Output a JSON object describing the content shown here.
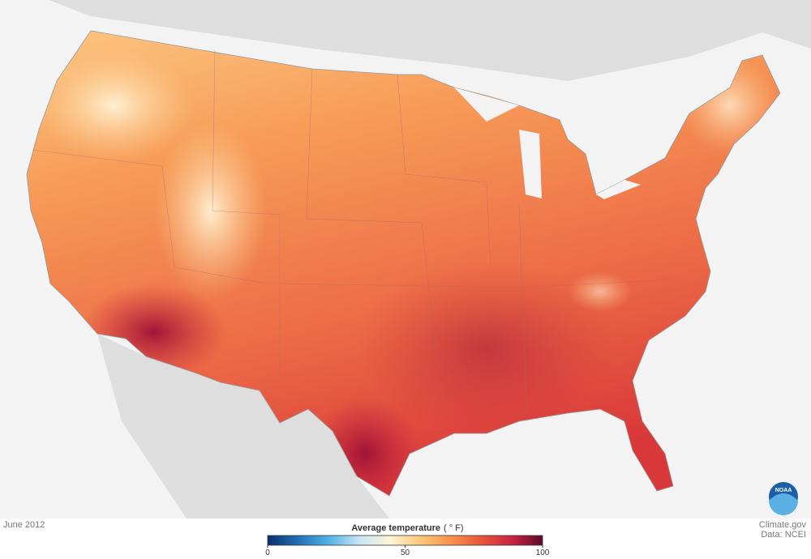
{
  "map": {
    "logo": "NOAA"
  },
  "legend": {
    "title": "Average temperature",
    "unit": "( ° F)",
    "range": [
      0,
      100
    ],
    "ticks": [
      0,
      50,
      100
    ],
    "colors": [
      "#08306b",
      "#2171b5",
      "#4fb3e8",
      "#c6e6f5",
      "#fff4d6",
      "#fdc877",
      "#f7924a",
      "#e9553a",
      "#c72440",
      "#5c0a2a"
    ]
  },
  "footer": {
    "date": "June 2012",
    "credit": "Climate.gov",
    "source": "Data: NCEI"
  }
}
